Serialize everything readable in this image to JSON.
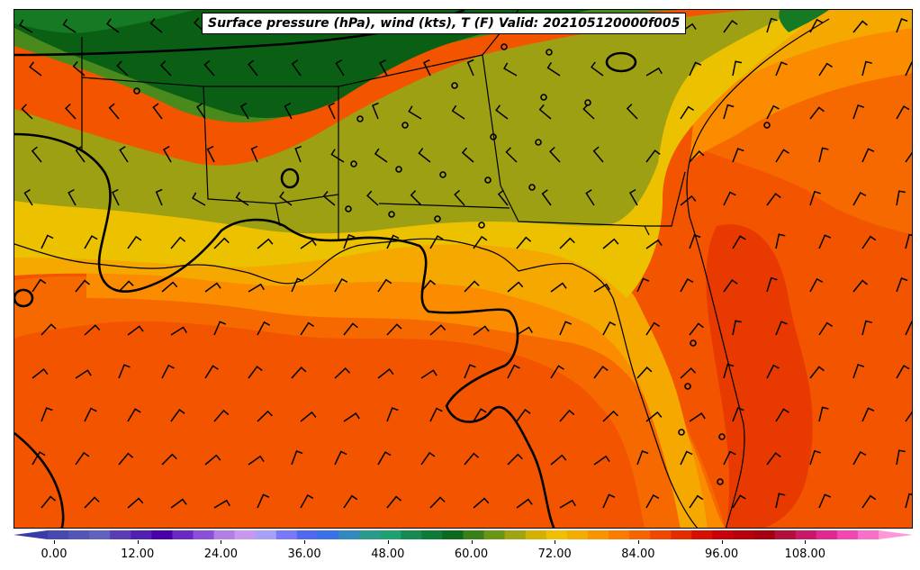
{
  "title": "Surface pressure (hPa), wind (kts), T (F) Valid: 202105120000f005",
  "colors": {
    "green_dark": "#0b5f14",
    "green": "#167a24",
    "olive_green": "#4a8a1c",
    "olive": "#9ea014",
    "yellow": "#ecc100",
    "amber": "#f5a800",
    "orange": "#fb8c00",
    "orange_deep": "#f66800",
    "red_orange": "#f25400",
    "red": "#e83a00",
    "line": "#000000"
  },
  "colorbar": {
    "ticks": [
      "0.00",
      "12.00",
      "24.00",
      "36.00",
      "48.00",
      "60.00",
      "72.00",
      "84.00",
      "96.00",
      "108.00"
    ],
    "tick_values": [
      0,
      12,
      24,
      36,
      48,
      60,
      72,
      84,
      96,
      108
    ],
    "min": -6,
    "max": 123,
    "colors": [
      "#3a3aa8",
      "#4848b0",
      "#5555b6",
      "#6262bc",
      "#5a3cb4",
      "#5220b0",
      "#4a00a8",
      "#6a28c4",
      "#8a50d8",
      "#b080e8",
      "#c898f0",
      "#a8a0f8",
      "#7878f8",
      "#5068f0",
      "#3a70e8",
      "#3488c0",
      "#2a9a8a",
      "#20a070",
      "#168a50",
      "#0e7a38",
      "#0b6a1e",
      "#3a801a",
      "#6a9616",
      "#a0a410",
      "#d4b000",
      "#f0c000",
      "#f5ac00",
      "#f89400",
      "#fb7c00",
      "#f66400",
      "#f04800",
      "#e22c00",
      "#d41000",
      "#c80008",
      "#b8000c",
      "#a40010",
      "#b0103c",
      "#c81868",
      "#e02890",
      "#f048b0",
      "#f870c8",
      "#ff98d8"
    ]
  }
}
